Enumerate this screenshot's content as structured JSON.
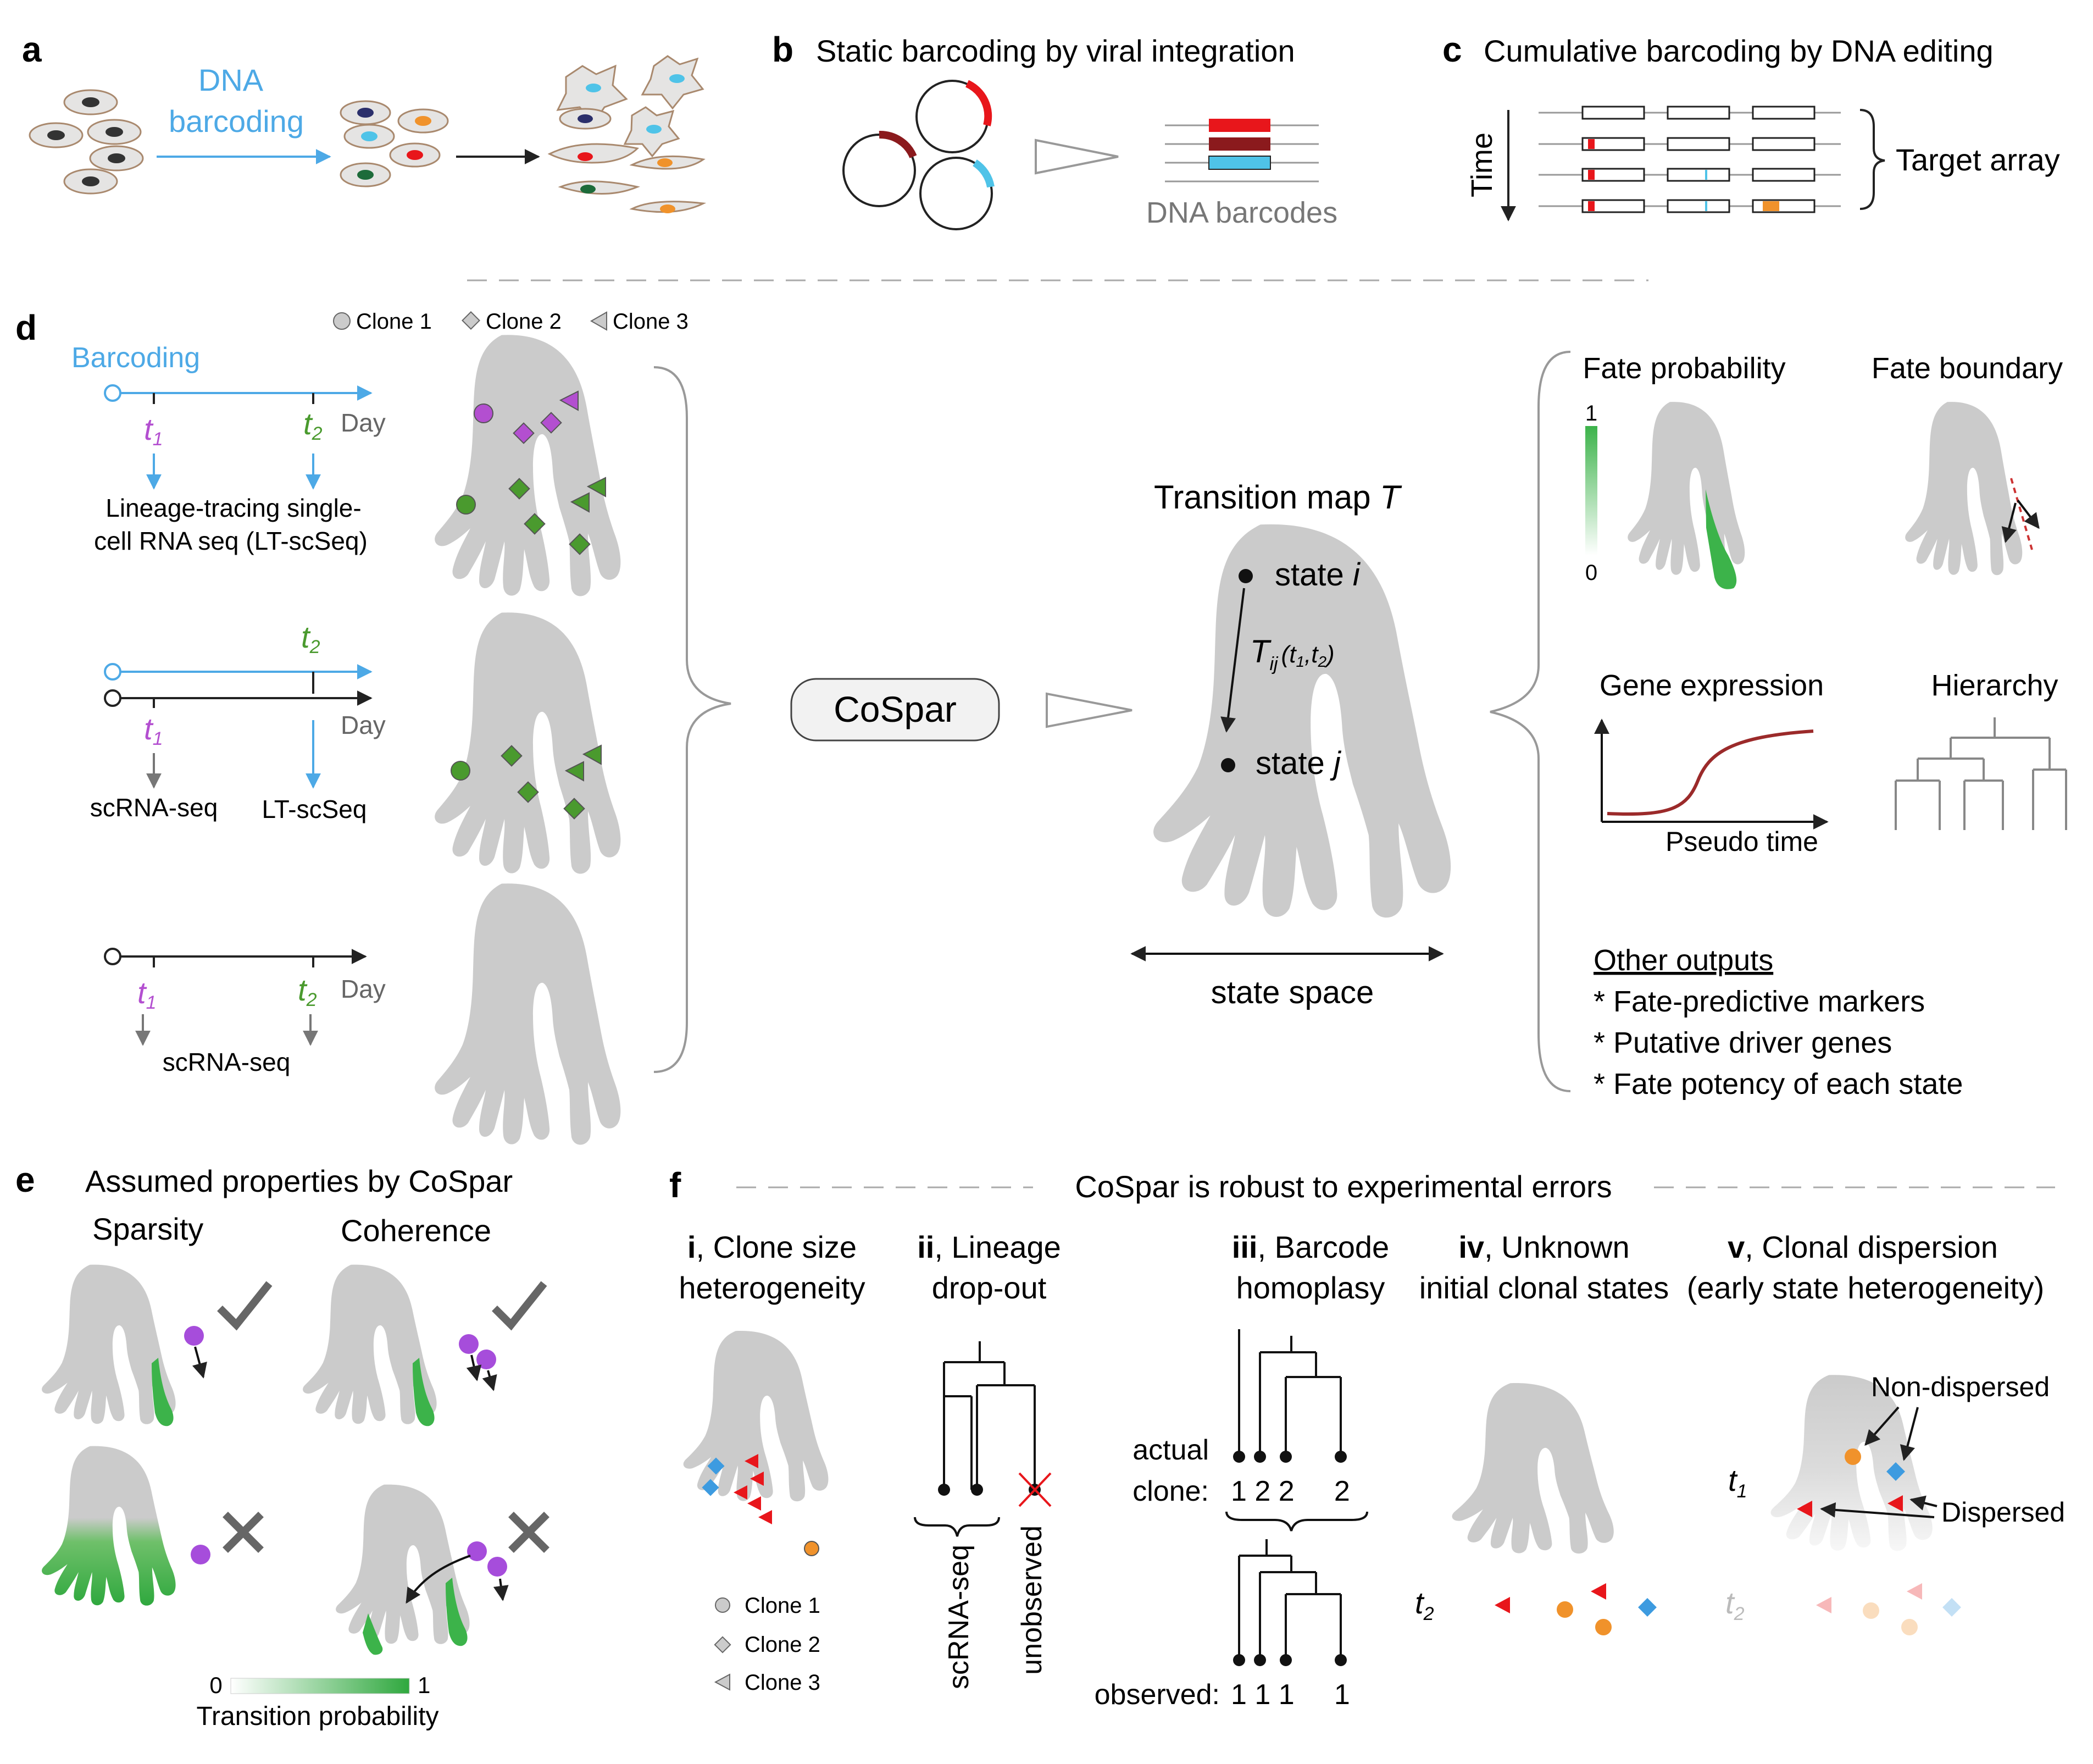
{
  "panel_a": {
    "letter": "a",
    "barcoding_label": [
      "DNA",
      "barcoding"
    ],
    "colors": {
      "barcode_arrow": "#4da9e6",
      "cell_fill": "#e5e4e3",
      "cell_outline": "#a9896e",
      "nucleus_plain": "#333333"
    }
  },
  "panel_b": {
    "letter": "b",
    "title": "Static barcoding by viral integration",
    "barcodes_label": "DNA barcodes",
    "colors": {
      "red": "#e8161b",
      "dark_red": "#8b1a1d",
      "blue": "#4fc3e8"
    }
  },
  "panel_c": {
    "letter": "c",
    "title": "Cumulative barcoding by DNA editing",
    "time_label": "Time",
    "target_label": "Target array"
  },
  "panel_d": {
    "letter": "d",
    "legend": [
      "Clone 1",
      "Clone 2",
      "Clone 3"
    ],
    "barcoding_label": "Barcoding",
    "t1": "t",
    "t1_sub": "1",
    "t2": "t",
    "t2_sub": "2",
    "day_label": "Day",
    "lt_scseq_long": [
      "Lineage-tracing single-",
      "cell RNA seq (LT-scSeq)"
    ],
    "scrna_label": "scRNA-seq",
    "lt_scseq_short": "LT-scSeq",
    "method_label": "CoSpar",
    "transition_title": "Transition map",
    "transition_T": "T",
    "state_i": "state",
    "state_i_var": "i",
    "state_j": "state",
    "state_j_var": "j",
    "tij": "T",
    "tij_sub": "ij",
    "tij_args": "(t",
    "state_space": "state space",
    "fate_probability": "Fate probability",
    "fate_boundary": "Fate boundary",
    "scale_max": "1",
    "scale_min": "0",
    "gene_expression": "Gene expression",
    "pseudo_time": "Pseudo time",
    "hierarchy": "Hierarchy",
    "other_outputs_title": "Other outputs",
    "other_outputs": [
      "* Fate-predictive markers",
      "* Putative driver genes",
      "* Fate potency of each state"
    ],
    "colors": {
      "blue": "#4da9e6",
      "green": "#4a9a2e",
      "magenta": "#b34fd0",
      "shape_gray": "#cbcbcb",
      "fate_green": "#3cb34a",
      "curve": "#9b2a2a"
    }
  },
  "panel_e": {
    "letter": "e",
    "title": "Assumed properties by CoSpar",
    "sparsity": "Sparsity",
    "coherence": "Coherence",
    "scale_min": "0",
    "scale_max": "1",
    "scale_label": "Transition probability",
    "colors": {
      "purple": "#a64ddb",
      "check": "#666666"
    }
  },
  "panel_f": {
    "letter": "f",
    "header": "CoSpar is robust to experimental errors",
    "sub_i": {
      "num": "i",
      "title_rest": ", Clone size",
      "title2": "heterogeneity"
    },
    "sub_ii": {
      "num": "ii",
      "title_rest": ", Lineage",
      "title2": "drop-out"
    },
    "sub_iii": {
      "num": "iii",
      "title_rest": ", Barcode",
      "title2": "homoplasy"
    },
    "sub_iv": {
      "num": "iv",
      "title_rest": ", Unknown",
      "title2": "initial clonal states"
    },
    "sub_v": {
      "num": "v",
      "title_rest": ", Clonal dispersion",
      "title2": "(early state heterogeneity)"
    },
    "legend": [
      "Clone 1",
      "Clone 2",
      "Clone 3"
    ],
    "scrna_label": "scRNA-seq",
    "unobserved_label": "unobserved",
    "actual_label": [
      "actual",
      "clone:"
    ],
    "actual_values": "1 2 2     2",
    "observed_label": "observed:",
    "observed_values": "1 1 1     1",
    "t1": "t",
    "t1_sub": "1",
    "t2": "t",
    "t2_sub": "2",
    "non_dispersed": "Non-dispersed",
    "dispersed": "Dispersed",
    "colors": {
      "red": "#e8161b",
      "blue": "#3d9be0",
      "orange": "#f0922b"
    }
  }
}
